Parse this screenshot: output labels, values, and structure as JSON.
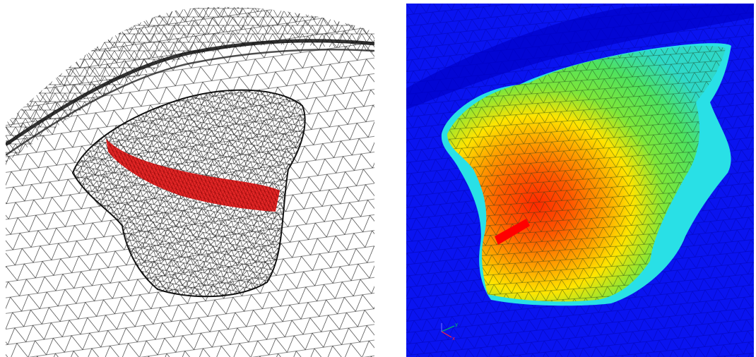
{
  "figure": {
    "left_panel": {
      "subject": "wireframe-mesh",
      "colors": {
        "mesh": "#1a1a1a",
        "highlight": "#e00000",
        "background": "#ffffff"
      }
    },
    "right_panel": {
      "subject": "contour-surface",
      "colors": {
        "background": "#0a14f0",
        "low": "#00e0ff",
        "mid": "#5ee64a",
        "high": "#ffe400",
        "peak": "#ff3b00",
        "mesh": "#173a17"
      },
      "axis_triad": {
        "x_label": "x",
        "y_label": "y"
      }
    }
  }
}
